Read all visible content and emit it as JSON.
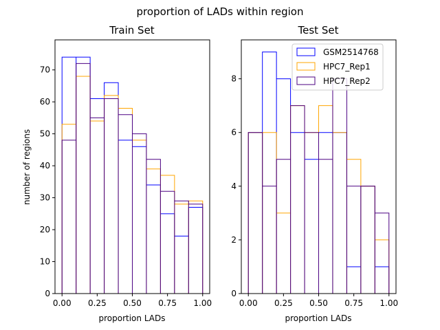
{
  "chart_data": {
    "type": "histogram",
    "title": "proportion of LADs within region",
    "legend_position": "upper-right (Test Set panel)",
    "series_styles": [
      {
        "name": "GSM2514768",
        "color": "#0000ff",
        "histtype": "step"
      },
      {
        "name": "HPC7_Rep1",
        "color": "#ffa500",
        "histtype": "step"
      },
      {
        "name": "HPC7_Rep2",
        "color": "#4b0082",
        "histtype": "step"
      }
    ],
    "panels": [
      {
        "title": "Train Set",
        "xlabel": "proportion LADs",
        "ylabel": "number of regions",
        "xlim": [
          -0.05,
          1.05
        ],
        "ylim": [
          0,
          79.4
        ],
        "xticks": [
          "0.00",
          "0.25",
          "0.50",
          "0.75",
          "1.00"
        ],
        "yticks": [
          "0",
          "10",
          "20",
          "30",
          "40",
          "50",
          "60",
          "70"
        ],
        "legend": false,
        "series": [
          {
            "name": "GSM2514768",
            "bins": [
              0.0,
              0.1,
              0.2,
              0.3,
              0.4,
              0.5,
              0.6,
              0.7,
              0.8,
              0.9,
              1.0
            ],
            "counts": [
              74,
              74,
              61,
              66,
              48,
              46,
              34,
              25,
              18,
              27
            ]
          },
          {
            "name": "HPC7_Rep1",
            "bins": [
              0.0,
              0.1,
              0.2,
              0.3,
              0.4,
              0.5,
              0.6,
              0.7,
              0.8,
              0.9,
              1.0
            ],
            "counts": [
              53,
              68,
              54,
              62,
              58,
              48,
              39,
              37,
              28,
              29
            ]
          },
          {
            "name": "HPC7_Rep2",
            "bins": [
              0.0,
              0.1,
              0.2,
              0.3,
              0.4,
              0.5,
              0.6,
              0.7,
              0.8,
              0.9,
              1.0
            ],
            "counts": [
              48,
              72,
              55,
              61,
              56,
              50,
              42,
              32,
              29,
              28
            ]
          }
        ]
      },
      {
        "title": "Test Set",
        "xlabel": "proportion LADs",
        "ylabel": "",
        "xlim": [
          -0.05,
          1.05
        ],
        "ylim": [
          0,
          9.45
        ],
        "xticks": [
          "0.00",
          "0.25",
          "0.50",
          "0.75",
          "1.00"
        ],
        "yticks": [
          "0",
          "2",
          "4",
          "6",
          "8"
        ],
        "legend": true,
        "series": [
          {
            "name": "GSM2514768",
            "bins": [
              0.0,
              0.1,
              0.2,
              0.3,
              0.4,
              0.5,
              0.6,
              0.7,
              0.8,
              0.9,
              1.0
            ],
            "counts": [
              6,
              9,
              8,
              6,
              5,
              6,
              6,
              1,
              4,
              1
            ]
          },
          {
            "name": "HPC7_Rep1",
            "bins": [
              0.0,
              0.1,
              0.2,
              0.3,
              0.4,
              0.5,
              0.6,
              0.7,
              0.8,
              0.9,
              1.0
            ],
            "counts": [
              6,
              6,
              3,
              7,
              6,
              7,
              6,
              5,
              4,
              2
            ]
          },
          {
            "name": "HPC7_Rep2",
            "bins": [
              0.0,
              0.1,
              0.2,
              0.3,
              0.4,
              0.5,
              0.6,
              0.7,
              0.8,
              0.9,
              1.0
            ],
            "counts": [
              6,
              4,
              5,
              7,
              6,
              5,
              8,
              4,
              4,
              3
            ]
          }
        ]
      }
    ]
  }
}
